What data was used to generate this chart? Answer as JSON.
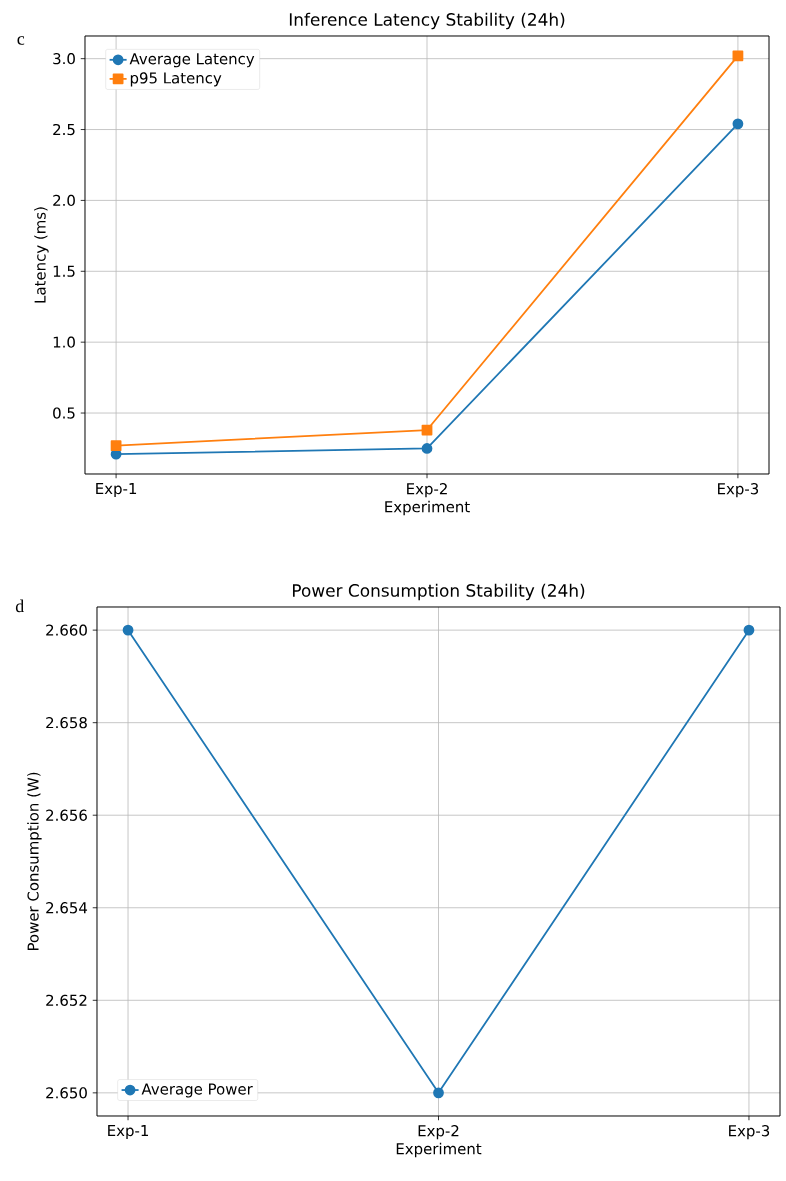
{
  "chart_data": [
    {
      "type": "line",
      "title": "Inference Latency Stability (24h)",
      "xlabel": "Experiment",
      "ylabel": "Latency (ms)",
      "categories": [
        "Exp-1",
        "Exp-2",
        "Exp-3"
      ],
      "series": [
        {
          "name": "Average Latency",
          "color": "#1f77b4",
          "marker": "circle",
          "values": [
            0.21,
            0.25,
            2.54
          ]
        },
        {
          "name": "p95 Latency",
          "color": "#ff7f0e",
          "marker": "square",
          "values": [
            0.27,
            0.38,
            3.02
          ]
        }
      ],
      "ylim": [
        0.07,
        3.16
      ],
      "yticks": [
        {
          "value": 0.5,
          "label": "0.5"
        },
        {
          "value": 1.0,
          "label": "1.0"
        },
        {
          "value": 1.5,
          "label": "1.5"
        },
        {
          "value": 2.0,
          "label": "2.0"
        },
        {
          "value": 2.5,
          "label": "2.5"
        },
        {
          "value": 3.0,
          "label": "3.0"
        }
      ],
      "grid": true,
      "legend": "top left",
      "line_style": "solid",
      "annotations": [
        "c"
      ]
    },
    {
      "type": "line",
      "title": "Power Consumption Stability (24h)",
      "xlabel": "Experiment",
      "ylabel": "Power Consumption (W)",
      "categories": [
        "Exp-1",
        "Exp-2",
        "Exp-3"
      ],
      "series": [
        {
          "name": "Average Power",
          "color": "#1f77b4",
          "marker": "circle",
          "values": [
            2.66,
            2.65,
            2.66
          ]
        }
      ],
      "ylim": [
        2.6495,
        2.6605
      ],
      "yticks": [
        {
          "value": 2.65,
          "label": "2.650"
        },
        {
          "value": 2.652,
          "label": "2.652"
        },
        {
          "value": 2.654,
          "label": "2.654"
        },
        {
          "value": 2.656,
          "label": "2.656"
        },
        {
          "value": 2.658,
          "label": "2.658"
        },
        {
          "value": 2.66,
          "label": "2.660"
        }
      ],
      "grid": true,
      "legend": "bottom left",
      "line_style": "solid",
      "annotations": [
        "d"
      ]
    }
  ]
}
